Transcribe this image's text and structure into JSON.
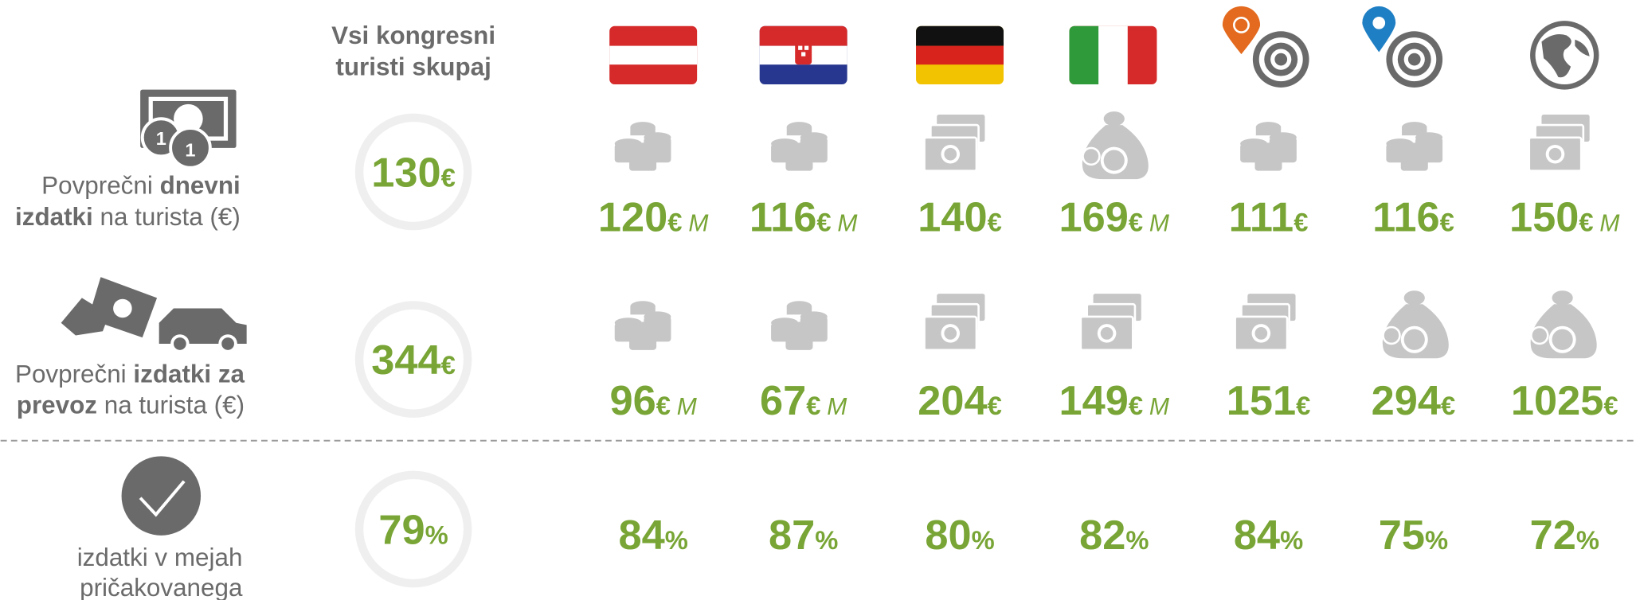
{
  "header": {
    "all_label": [
      "Vsi kongresni",
      "turisti skupaj"
    ]
  },
  "rows": [
    {
      "label": [
        [
          {
            "text": "Povprečni "
          },
          {
            "text": "dnevni",
            "bold": true
          }
        ],
        [
          {
            "text": "izdatki",
            "bold": true
          },
          {
            "text": " na turista (€)"
          }
        ]
      ],
      "total": {
        "value": 130,
        "unit": "€"
      },
      "cells": [
        {
          "value": 120,
          "unit": "€",
          "note": "M"
        },
        {
          "value": 116,
          "unit": "€",
          "note": "M"
        },
        {
          "value": 140,
          "unit": "€"
        },
        {
          "value": 169,
          "unit": "€",
          "note": "M"
        },
        {
          "value": 111,
          "unit": "€"
        },
        {
          "value": 116,
          "unit": "€"
        },
        {
          "value": 150,
          "unit": "€",
          "note": "M"
        }
      ]
    },
    {
      "label": [
        [
          {
            "text": "Povprečni "
          },
          {
            "text": "izdatki za",
            "bold": true
          }
        ],
        [
          {
            "text": "prevoz",
            "bold": true
          },
          {
            "text": " na turista (€)"
          }
        ]
      ],
      "total": {
        "value": 344,
        "unit": "€"
      },
      "cells": [
        {
          "value": 96,
          "unit": "€",
          "note": "M"
        },
        {
          "value": 67,
          "unit": "€",
          "note": "M"
        },
        {
          "value": 204,
          "unit": "€"
        },
        {
          "value": 149,
          "unit": "€",
          "note": "M"
        },
        {
          "value": 151,
          "unit": "€"
        },
        {
          "value": 294,
          "unit": "€"
        },
        {
          "value": 1025,
          "unit": "€"
        }
      ]
    },
    {
      "label": [
        [
          {
            "text": "izdatki v mejah"
          }
        ],
        [
          {
            "text": "pričakovanega"
          }
        ]
      ],
      "total": {
        "value": 79,
        "unit": "%"
      },
      "cells": [
        {
          "value": 84,
          "unit": "%"
        },
        {
          "value": 87,
          "unit": "%"
        },
        {
          "value": 80,
          "unit": "%"
        },
        {
          "value": 82,
          "unit": "%"
        },
        {
          "value": 84,
          "unit": "%"
        },
        {
          "value": 75,
          "unit": "%"
        },
        {
          "value": 72,
          "unit": "%"
        }
      ]
    }
  ]
}
